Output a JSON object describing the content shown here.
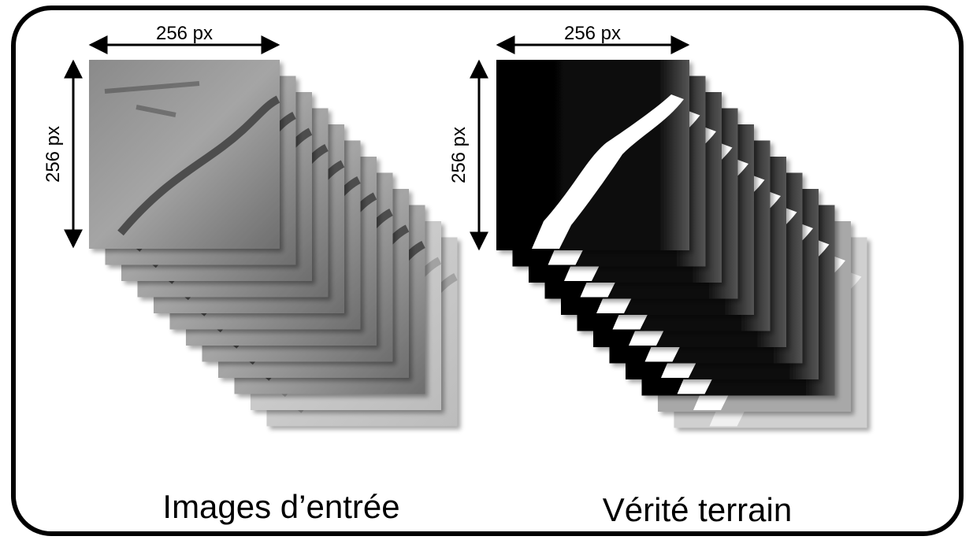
{
  "left": {
    "width_label": "256 px",
    "height_label": "256 px",
    "caption": "Images d’entrée"
  },
  "right": {
    "width_label": "256 px",
    "height_label": "256 px",
    "caption": "Vérité terrain"
  }
}
